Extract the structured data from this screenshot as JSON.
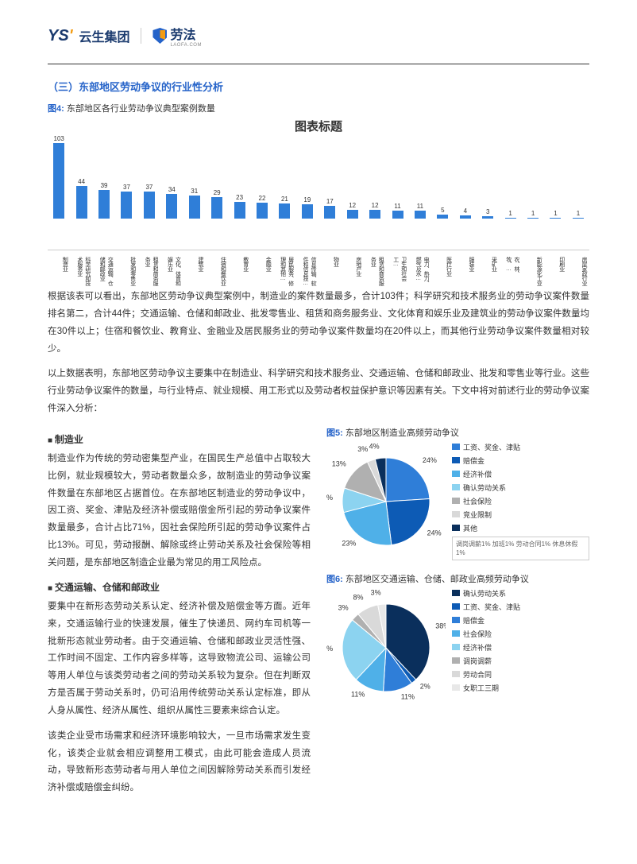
{
  "header": {
    "logo1_prefix": "YS",
    "brand1": "云生集团",
    "brand2": "劳法",
    "brand2_sub": "LAOFA.COM"
  },
  "section_title": "（三）东部地区劳动争议的行业性分析",
  "fig4": {
    "label": "图4:",
    "caption": "东部地区各行业劳动争议典型案例数量",
    "chart_title": "图表标题",
    "bar_color": "#2f7ed8",
    "max": 103,
    "categories": [
      "制造业",
      "科学研究和技术服务业",
      "交通运输、仓储和邮政业",
      "批发和零售业",
      "租赁和商务服务业",
      "文化、体育和娱乐业",
      "建筑业",
      "住宿和餐饮业",
      "教育业",
      "金融业",
      "居民服务、修理和其他…",
      "信息传输、软件和信息技…",
      "物业",
      "房地产业",
      "租赁和商务服务业",
      "卫生和社会工…",
      "电力、热力、燃气及水…",
      "医疗行业",
      "服装业",
      "采矿业",
      "农、林、牧、…",
      "新能源化工业",
      "印刷业",
      "房屋家政行业"
    ],
    "values": [
      103,
      44,
      39,
      37,
      37,
      34,
      31,
      29,
      23,
      22,
      21,
      19,
      17,
      12,
      12,
      11,
      11,
      5,
      4,
      3,
      1,
      1,
      1,
      1
    ]
  },
  "para1": "根据该表可以看出，东部地区劳动争议典型案例中，制造业的案件数量最多，合计103件；科学研究和技术服务业的劳动争议案件数量排名第二，合计44件；交通运输、仓储和邮政业、批发零售业、租赁和商务服务业、文化体育和娱乐业及建筑业的劳动争议案件数量均在30件以上；住宿和餐饮业、教育业、金融业及居民服务业的劳动争议案件数量均在20件以上，而其他行业劳动争议案件数量相对较少。",
  "para2": "以上数据表明，东部地区劳动争议主要集中在制造业、科学研究和技术服务业、交通运输、仓储和邮政业、批发和零售业等行业。这些行业劳动争议案件的数量，与行业特点、就业规模、用工形式以及劳动者权益保护意识等因素有关。下文中将对前述行业的劳动争议案件深入分析：",
  "sub1": "制造业",
  "para3": "制造业作为传统的劳动密集型产业，在国民生产总值中占取较大比例，就业规模较大，劳动者数量众多，故制造业的劳动争议案件数量在东部地区占据首位。在东部地区制造业的劳动争议中，因工资、奖金、津贴及经济补偿或赔偿金所引起的劳动争议案件数量最多，合计占比71%，因社会保险所引起的劳动争议案件占比13%。可见，劳动报酬、解除或终止劳动关系及社会保险等相关问题，是东部地区制造企业最为常见的用工风险点。",
  "sub2": "交通运输、仓储和邮政业",
  "para4": "要集中在新形态劳动关系认定、经济补偿及赔偿金等方面。近年来，交通运输行业的快速发展，催生了快递员、网约车司机等一批新形态就业劳动者。由于交通运输、仓储和邮政业灵活性强、工作时间不固定、工作内容多样等，这导致物流公司、运输公司等用人单位与该类劳动者之间的劳动关系较为复杂。但在判断双方是否属于劳动关系时，仍可沿用传统劳动关系认定标准，即从人身从属性、经济从属性、组织从属性三要素来综合认定。",
  "para5": "该类企业受市场需求和经济环境影响较大，一旦市场需求发生变化，该类企业就会相应调整用工模式，由此可能会造成人员流动，导致新形态劳动者与用人单位之间因解除劳动关系而引发经济补偿或赔偿金纠纷。",
  "fig5": {
    "label": "图5:",
    "caption": "东部地区制造业高频劳动争议",
    "slices": [
      {
        "name": "工资、奖金、津贴",
        "value": 24,
        "color": "#2f7ed8"
      },
      {
        "name": "赔偿金",
        "value": 24,
        "color": "#0d5bb5"
      },
      {
        "name": "经济补偿",
        "value": 23,
        "color": "#4fb0e8"
      },
      {
        "name": "确认劳动关系",
        "value": 9,
        "color": "#8cd3f0"
      },
      {
        "name": "社会保险",
        "value": 13,
        "color": "#b0b0b0"
      },
      {
        "name": "竞业限制",
        "value": 3,
        "color": "#d9d9d9"
      },
      {
        "name": "其他",
        "value": 4,
        "color": "#0a2f5c"
      }
    ],
    "note": "调岗调薪1%  加班1%\n劳动合同1%  休息休假1%"
  },
  "fig6": {
    "label": "图6:",
    "caption": "东部地区交通运输、仓储、邮政业高频劳动争议",
    "slices": [
      {
        "name": "确认劳动关系",
        "value": 38,
        "color": "#0a2f5c"
      },
      {
        "name": "工资、奖金、津贴",
        "value": 2,
        "color": "#0d5bb5"
      },
      {
        "name": "赔偿金",
        "value": 11,
        "color": "#2f7ed8"
      },
      {
        "name": "社会保险",
        "value": 11,
        "color": "#4fb0e8"
      },
      {
        "name": "经济补偿",
        "value": 24,
        "color": "#8cd3f0"
      },
      {
        "name": "调岗调薪",
        "value": 3,
        "color": "#b0b0b0"
      },
      {
        "name": "劳动合同",
        "value": 8,
        "color": "#d9d9d9"
      },
      {
        "name": "女职工三期",
        "value": 3,
        "color": "#e8e8e8"
      }
    ]
  }
}
